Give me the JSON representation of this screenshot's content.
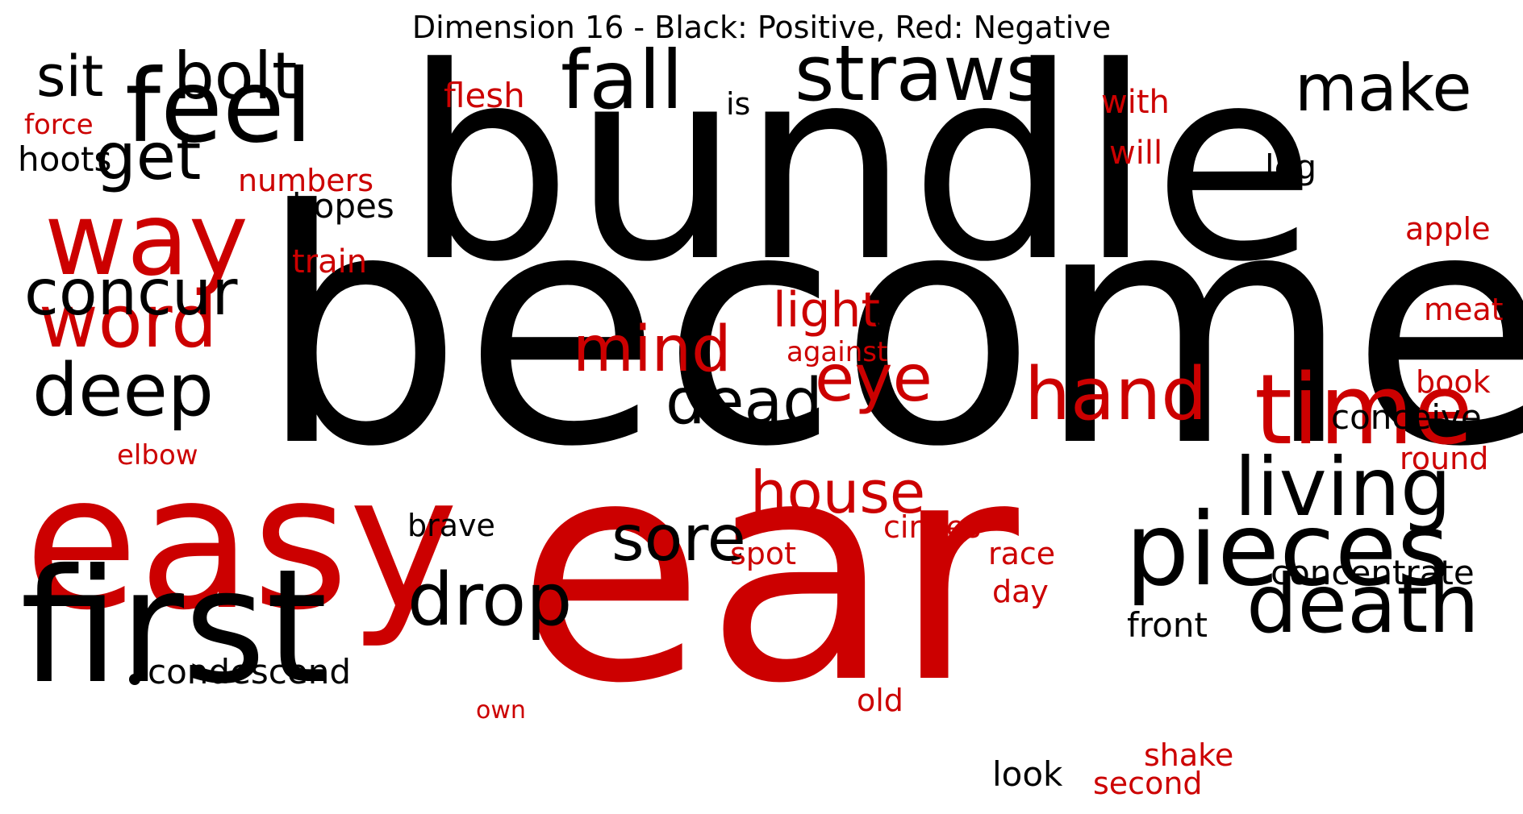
{
  "title": "Dimension 16 - Black: Positive, Red: Negative",
  "colors": {
    "positive": "#000000",
    "negative": "#cc0000"
  },
  "words": [
    {
      "text": "bundle",
      "polarity": "positive"
    },
    {
      "text": "become",
      "polarity": "positive"
    },
    {
      "text": "ear",
      "polarity": "negative"
    },
    {
      "text": "easy",
      "polarity": "negative"
    },
    {
      "text": "first",
      "polarity": "positive"
    },
    {
      "text": "feel",
      "polarity": "positive"
    },
    {
      "text": "way",
      "polarity": "negative"
    },
    {
      "text": "time",
      "polarity": "negative"
    },
    {
      "text": "pieces",
      "polarity": "positive"
    },
    {
      "text": "straws",
      "polarity": "positive"
    },
    {
      "text": "fall",
      "polarity": "positive"
    },
    {
      "text": "living",
      "polarity": "positive"
    },
    {
      "text": "death",
      "polarity": "positive"
    },
    {
      "text": "make",
      "polarity": "positive"
    },
    {
      "text": "bolt",
      "polarity": "positive"
    },
    {
      "text": "word",
      "polarity": "negative"
    },
    {
      "text": "deep",
      "polarity": "positive"
    },
    {
      "text": "hand",
      "polarity": "negative"
    },
    {
      "text": "drop",
      "polarity": "positive"
    },
    {
      "text": "concur",
      "polarity": "positive"
    },
    {
      "text": "get",
      "polarity": "positive"
    },
    {
      "text": "sit",
      "polarity": "positive"
    },
    {
      "text": "mind",
      "polarity": "negative"
    },
    {
      "text": "eye",
      "polarity": "negative"
    },
    {
      "text": "dead",
      "polarity": "positive"
    },
    {
      "text": "sore",
      "polarity": "positive"
    },
    {
      "text": "house",
      "polarity": "negative"
    },
    {
      "text": "light",
      "polarity": "negative"
    },
    {
      "text": "flesh",
      "polarity": "negative"
    },
    {
      "text": "concentrate",
      "polarity": "positive"
    },
    {
      "text": "conceive",
      "polarity": "positive"
    },
    {
      "text": "front",
      "polarity": "positive"
    },
    {
      "text": "condescend",
      "polarity": "positive"
    },
    {
      "text": "hoots",
      "polarity": "positive"
    },
    {
      "text": "hopes",
      "polarity": "positive"
    },
    {
      "text": "numbers",
      "polarity": "negative"
    },
    {
      "text": "train",
      "polarity": "negative"
    },
    {
      "text": "with",
      "polarity": "negative"
    },
    {
      "text": "will",
      "polarity": "negative"
    },
    {
      "text": "leg",
      "polarity": "positive"
    },
    {
      "text": "apple",
      "polarity": "negative"
    },
    {
      "text": "meat",
      "polarity": "negative"
    },
    {
      "text": "book",
      "polarity": "negative"
    },
    {
      "text": "round",
      "polarity": "negative"
    },
    {
      "text": "is",
      "polarity": "positive"
    },
    {
      "text": "force",
      "polarity": "negative"
    },
    {
      "text": "elbow",
      "polarity": "negative"
    },
    {
      "text": "a",
      "polarity": "positive"
    },
    {
      "text": "against",
      "polarity": "negative"
    },
    {
      "text": "brave",
      "polarity": "positive"
    },
    {
      "text": "circles",
      "polarity": "negative"
    },
    {
      "text": "spot",
      "polarity": "negative"
    },
    {
      "text": "race",
      "polarity": "negative"
    },
    {
      "text": "day",
      "polarity": "negative"
    },
    {
      "text": "old",
      "polarity": "negative"
    },
    {
      "text": "own",
      "polarity": "negative"
    },
    {
      "text": "look",
      "polarity": "positive"
    },
    {
      "text": "shake",
      "polarity": "negative"
    },
    {
      "text": "second",
      "polarity": "negative"
    }
  ]
}
